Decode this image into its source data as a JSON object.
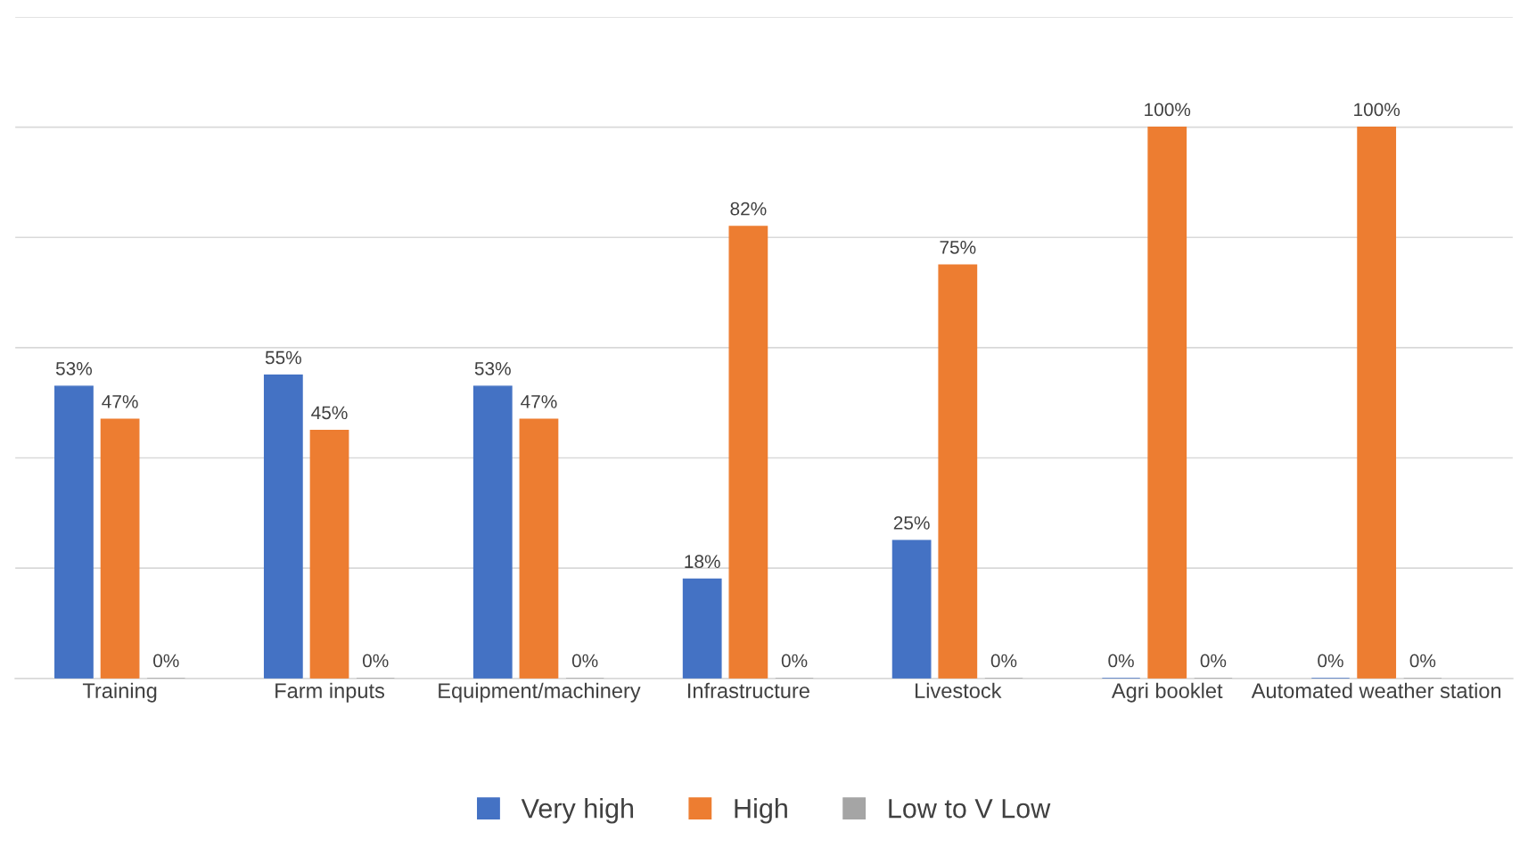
{
  "chart_data": {
    "type": "bar",
    "categories": [
      "Training",
      "Farm inputs",
      "Equipment/machinery",
      "Infrastructure",
      "Livestock",
      "Agri booklet",
      "Automated weather station"
    ],
    "series": [
      {
        "name": "Very high",
        "color": "#4472c4",
        "values": [
          53,
          55,
          53,
          18,
          25,
          0,
          0
        ],
        "value_labels": [
          "53%",
          "55%",
          "53%",
          "18%",
          "25%",
          "0%",
          "0%"
        ]
      },
      {
        "name": "High",
        "color": "#ed7d31",
        "values": [
          47,
          45,
          47,
          82,
          75,
          100,
          100
        ],
        "value_labels": [
          "47%",
          "45%",
          "47%",
          "82%",
          "75%",
          "100%",
          "100%"
        ]
      },
      {
        "name": "Low to V Low",
        "color": "#a5a5a5",
        "values": [
          0,
          0,
          0,
          0,
          0,
          0,
          0
        ],
        "value_labels": [
          "0%",
          "0%",
          "0%",
          "0%",
          "0%",
          "0%",
          "0%"
        ]
      }
    ],
    "ylim": [
      0,
      120
    ],
    "yticks": [
      {
        "value": 0,
        "label": null
      },
      {
        "value": 20,
        "label": null
      },
      {
        "value": 40,
        "label": null
      },
      {
        "value": 60,
        "label": null
      },
      {
        "value": 80,
        "label": null
      },
      {
        "value": 100,
        "label": null
      },
      {
        "value": 120,
        "label": null
      }
    ],
    "tick_labels": "x",
    "grid": "y",
    "legend": "bottom"
  }
}
